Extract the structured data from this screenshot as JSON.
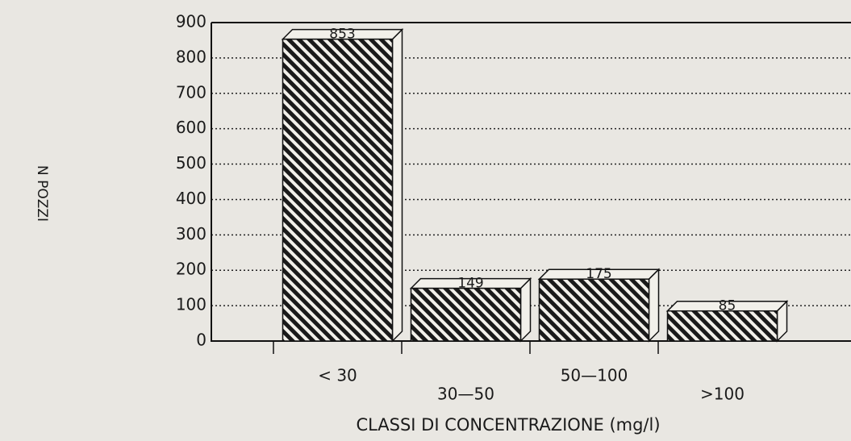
{
  "chart_data": {
    "type": "bar",
    "categories": [
      "< 30",
      "30—50",
      "50—100",
      ">100"
    ],
    "values": [
      853,
      149,
      175,
      85
    ],
    "xlabel": "CLASSI DI CONCENTRAZIONE (mg/l)",
    "ylabel": "N POZZI",
    "ylim": [
      0,
      900
    ],
    "yticks": [
      0,
      100,
      200,
      300,
      400,
      500,
      600,
      700,
      800,
      900
    ],
    "grid": true,
    "color": "#1a1a1a"
  }
}
